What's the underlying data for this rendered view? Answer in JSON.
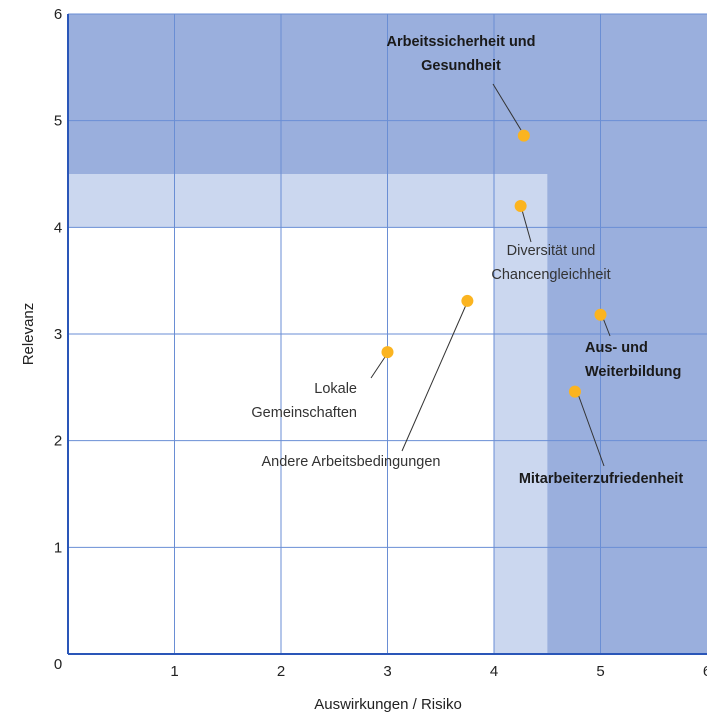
{
  "chart_data": {
    "type": "scatter",
    "xlabel": "Auswirkungen / Risiko",
    "ylabel": "Relevanz",
    "xlim": [
      0,
      6
    ],
    "ylim": [
      0,
      6
    ],
    "x_ticks": [
      "0",
      "1",
      "2",
      "3",
      "4",
      "5",
      "6"
    ],
    "y_ticks": [
      "0",
      "1",
      "2",
      "3",
      "4",
      "5",
      "6"
    ],
    "grid": true,
    "colors": {
      "zone_high": "#9aafdd",
      "zone_medium": "#cbd7ef",
      "zone_low": "#ffffff",
      "grid": "#6a8ed4",
      "point": "#fbb420",
      "axis": "#2a56b8"
    },
    "zones": [
      {
        "level": "medium",
        "x_min": 0,
        "x_max": 4.5,
        "y_min": 4.0,
        "y_max": 4.5
      },
      {
        "level": "medium",
        "x_min": 4.0,
        "x_max": 4.5,
        "y_min": 0,
        "y_max": 4.5
      },
      {
        "level": "high",
        "x_min": 0,
        "x_max": 6,
        "y_min": 4.5,
        "y_max": 6
      },
      {
        "level": "high",
        "x_min": 4.5,
        "x_max": 6,
        "y_min": 0,
        "y_max": 6
      }
    ],
    "points": [
      {
        "label_lines": [
          "Arbeitssicherheit und",
          "Gesundheit"
        ],
        "x": 4.28,
        "y": 4.86,
        "bold": true
      },
      {
        "label_lines": [
          "Diversität und",
          "Chancengleichheit"
        ],
        "x": 4.25,
        "y": 4.2,
        "bold": false
      },
      {
        "label_lines": [
          "Aus- und",
          "Weiterbildung"
        ],
        "x": 5.0,
        "y": 3.18,
        "bold": true
      },
      {
        "label_lines": [
          "Lokale",
          "Gemeinschaften"
        ],
        "x": 3.0,
        "y": 2.83,
        "bold": false
      },
      {
        "label_lines": [
          "Andere Arbeitsbedingungen"
        ],
        "x": 3.75,
        "y": 3.31,
        "bold": false
      },
      {
        "label_lines": [
          "Mitarbeiterzufriedenheit"
        ],
        "x": 4.76,
        "y": 2.46,
        "bold": true
      }
    ]
  }
}
